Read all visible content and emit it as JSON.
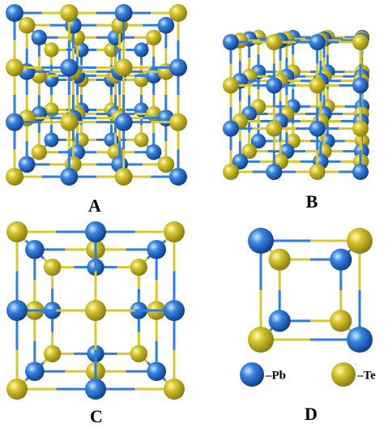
{
  "panels": [
    {
      "label": "A"
    },
    {
      "label": "B"
    },
    {
      "label": "C"
    },
    {
      "label": "D"
    }
  ],
  "legend": [
    {
      "label": "–Pb"
    },
    {
      "label": "–Te"
    }
  ]
}
